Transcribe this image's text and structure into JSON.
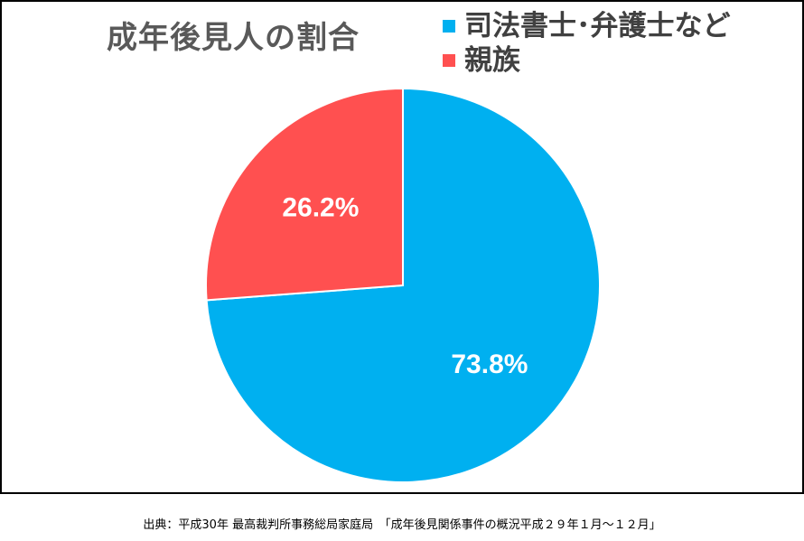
{
  "chart_data": {
    "type": "pie",
    "title": "成年後見人の割合",
    "categories": [
      "司法書士･弁護士など",
      "親族"
    ],
    "values": [
      73.8,
      26.2
    ],
    "value_labels": [
      "73.8%",
      "26.2%"
    ],
    "colors": [
      "#00b0f0",
      "#ff5050"
    ],
    "legend_position": "top-right",
    "start_angle_deg": 0,
    "direction": "clockwise"
  },
  "source_note": "出典：平成30年 最高裁判所事務総局家庭局　「成年後見関係事件の概況平成２９年１月～１２月」"
}
